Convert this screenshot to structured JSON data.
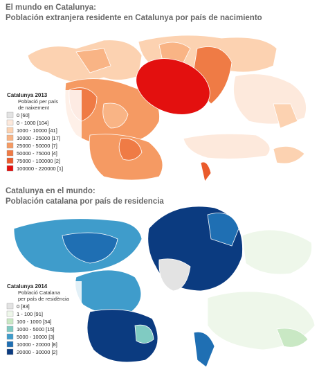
{
  "panels": [
    {
      "title": "El mundo en Catalunya:",
      "subtitle": "Población extranjera residente en Catalunya por país de nacimiento",
      "legend": {
        "title": "Catalunya 2013",
        "subtitle_lines": [
          "Població per país",
          "de naixement"
        ],
        "items": [
          {
            "label": "0 [60]",
            "color": "#e3e3e3"
          },
          {
            "label": "0 - 1000 [104]",
            "color": "#fde9dc"
          },
          {
            "label": "1000 - 10000 [41]",
            "color": "#fcd2b1"
          },
          {
            "label": "10000 - 25000 [17]",
            "color": "#f9b485"
          },
          {
            "label": "25000 - 50000 [7]",
            "color": "#f59a63"
          },
          {
            "label": "50000 - 75000 [4]",
            "color": "#ef7b45"
          },
          {
            "label": "75000 - 100000 [2]",
            "color": "#ea5b2c"
          },
          {
            "label": "100000 - 220000 [1]",
            "color": "#e3100f"
          }
        ]
      }
    },
    {
      "title": "Catalunya en el mundo:",
      "subtitle": "Población catalana por país de residencia",
      "legend": {
        "title": "Catalunya 2014",
        "subtitle_lines": [
          "Població Catalana",
          "per país de residència"
        ],
        "items": [
          {
            "label": "0 [83]",
            "color": "#e3e3e3"
          },
          {
            "label": "1 - 100 [91]",
            "color": "#eef7ea"
          },
          {
            "label": "100 - 1000 [34]",
            "color": "#c9e8c4"
          },
          {
            "label": "1000 - 5000 [15]",
            "color": "#80cbc2"
          },
          {
            "label": "5000 - 10000 [3]",
            "color": "#3f9ccb"
          },
          {
            "label": "10000 - 20000 [8]",
            "color": "#1f6fb3"
          },
          {
            "label": "20000 - 30000 [2]",
            "color": "#0b3b80"
          }
        ]
      }
    }
  ]
}
